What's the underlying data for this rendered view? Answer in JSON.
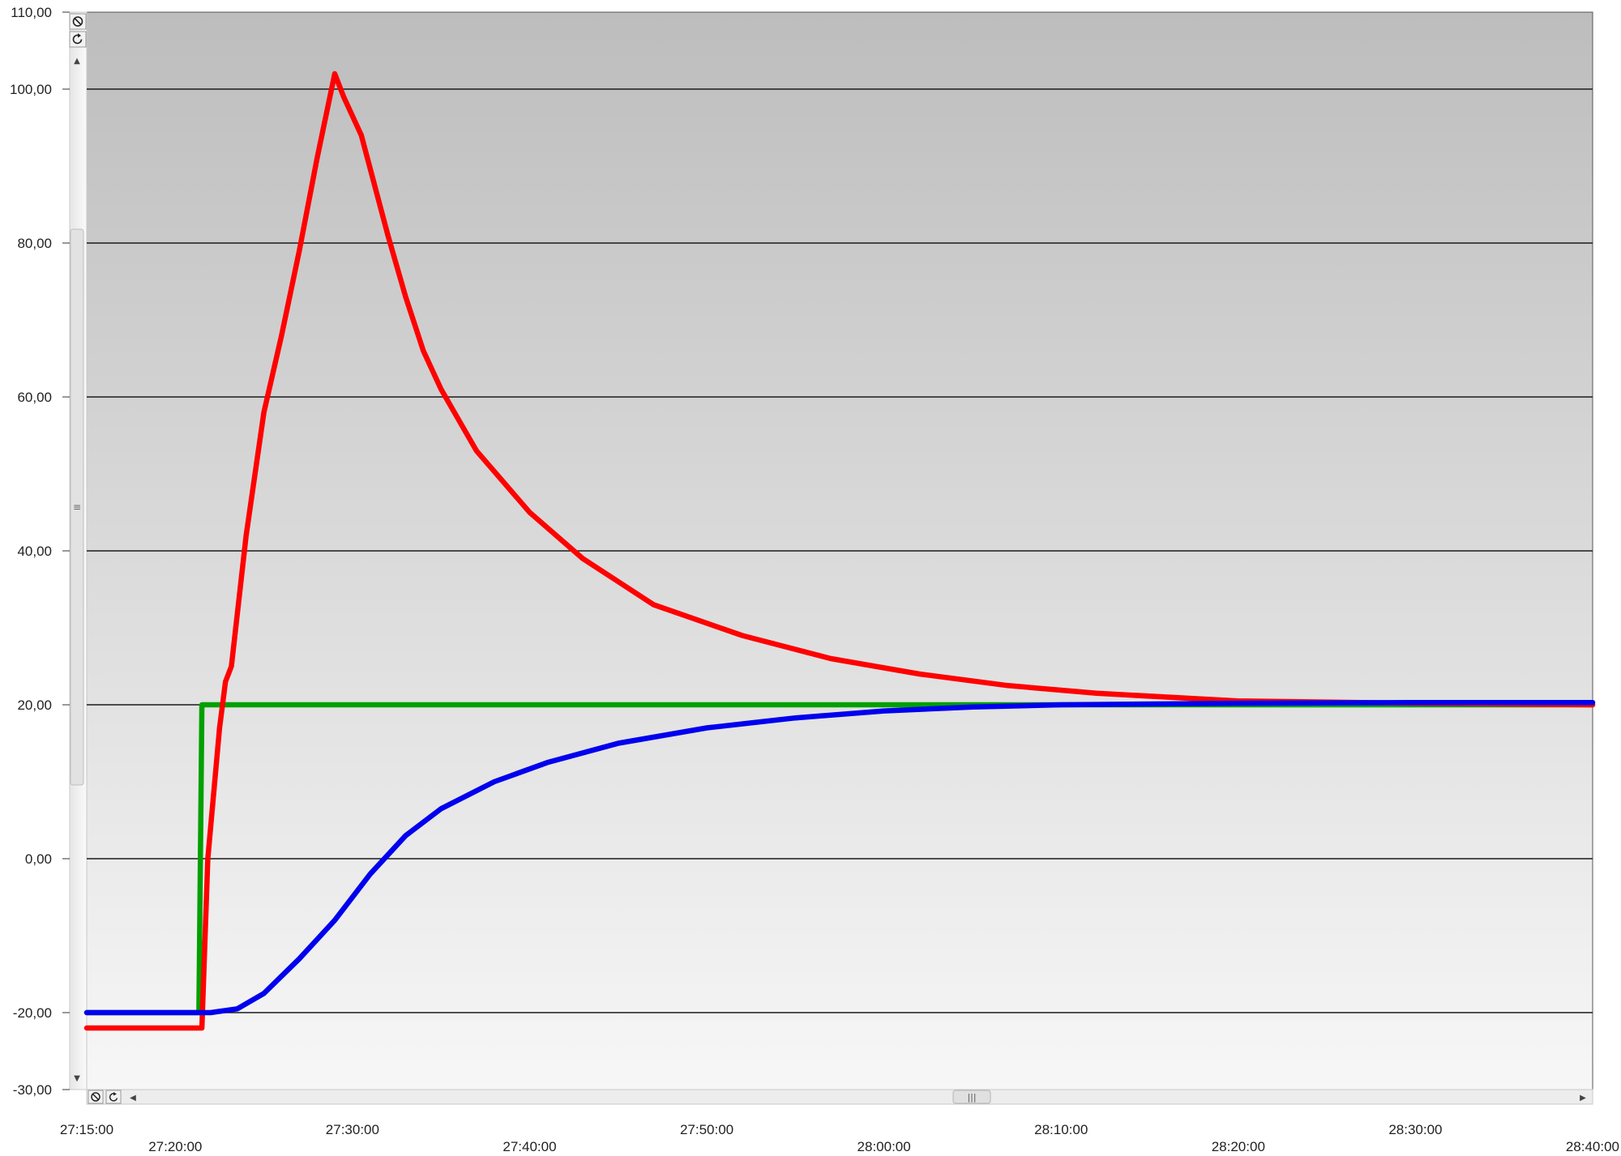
{
  "window": {
    "vertical_scroll": {
      "up_arrow": "▲",
      "down_arrow": "▼",
      "thumb_grip": "≡"
    },
    "horizontal_scroll": {
      "left_arrow": "◀",
      "right_arrow": "▶",
      "thumb_grip": "|||"
    },
    "controls": {
      "reset_icon": "reset-zoom-icon",
      "refresh_icon": "refresh-icon"
    }
  },
  "chart_data": {
    "type": "line",
    "title": "",
    "xlabel": "",
    "ylabel": "",
    "grid": true,
    "ylim": [
      -30,
      110
    ],
    "xlim": [
      "27:15:00",
      "28:40:00"
    ],
    "y_ticks": [
      {
        "value": 110,
        "label": "110,00"
      },
      {
        "value": 100,
        "label": "100,00"
      },
      {
        "value": 80,
        "label": "80,00"
      },
      {
        "value": 60,
        "label": "60,00"
      },
      {
        "value": 40,
        "label": "40,00"
      },
      {
        "value": 20,
        "label": "20,00"
      },
      {
        "value": 0,
        "label": "0,00"
      },
      {
        "value": -20,
        "label": "-20,00"
      },
      {
        "value": -30,
        "label": "-30,00"
      }
    ],
    "x_ticks": [
      {
        "time": "27:15:00",
        "label": "27:15:00"
      },
      {
        "time": "27:20:00",
        "label": "27:20:00"
      },
      {
        "time": "27:30:00",
        "label": "27:30:00"
      },
      {
        "time": "27:40:00",
        "label": "27:40:00"
      },
      {
        "time": "27:50:00",
        "label": "27:50:00"
      },
      {
        "time": "28:00:00",
        "label": "28:00:00"
      },
      {
        "time": "28:10:00",
        "label": "28:10:00"
      },
      {
        "time": "28:20:00",
        "label": "28:20:00"
      },
      {
        "time": "28:30:00",
        "label": "28:30:00"
      },
      {
        "time": "28:40:00",
        "label": "28:40:00"
      }
    ],
    "series": [
      {
        "color": "#00a000",
        "points": [
          [
            "27:15:00",
            -20
          ],
          [
            "27:21:20",
            -20
          ],
          [
            "27:21:30",
            20
          ],
          [
            "28:40:00",
            20
          ]
        ]
      },
      {
        "color": "#ff0000",
        "points": [
          [
            "27:15:00",
            -22
          ],
          [
            "27:21:30",
            -22
          ],
          [
            "27:21:50",
            0
          ],
          [
            "27:22:30",
            17
          ],
          [
            "27:22:50",
            23
          ],
          [
            "27:23:10",
            25
          ],
          [
            "27:24:00",
            42
          ],
          [
            "27:25:00",
            58
          ],
          [
            "27:26:00",
            68
          ],
          [
            "27:27:00",
            79
          ],
          [
            "27:28:00",
            91
          ],
          [
            "27:29:00",
            102
          ],
          [
            "27:29:30",
            99
          ],
          [
            "27:30:30",
            94
          ],
          [
            "27:32:00",
            81
          ],
          [
            "27:33:00",
            73
          ],
          [
            "27:34:00",
            66
          ],
          [
            "27:35:00",
            61
          ],
          [
            "27:37:00",
            53
          ],
          [
            "27:40:00",
            45
          ],
          [
            "27:43:00",
            39
          ],
          [
            "27:47:00",
            33
          ],
          [
            "27:52:00",
            29
          ],
          [
            "27:57:00",
            26
          ],
          [
            "28:02:00",
            24
          ],
          [
            "28:07:00",
            22.5
          ],
          [
            "28:12:00",
            21.5
          ],
          [
            "28:20:00",
            20.5
          ],
          [
            "28:30:00",
            20.2
          ],
          [
            "28:40:00",
            20
          ]
        ]
      },
      {
        "color": "#0000ee",
        "points": [
          [
            "27:15:00",
            -20
          ],
          [
            "27:22:00",
            -20
          ],
          [
            "27:23:30",
            -19.5
          ],
          [
            "27:25:00",
            -17.5
          ],
          [
            "27:27:00",
            -13
          ],
          [
            "27:29:00",
            -8
          ],
          [
            "27:31:00",
            -2
          ],
          [
            "27:33:00",
            3
          ],
          [
            "27:35:00",
            6.5
          ],
          [
            "27:38:00",
            10
          ],
          [
            "27:41:00",
            12.5
          ],
          [
            "27:45:00",
            15
          ],
          [
            "27:50:00",
            17
          ],
          [
            "27:55:00",
            18.3
          ],
          [
            "28:00:00",
            19.2
          ],
          [
            "28:05:00",
            19.7
          ],
          [
            "28:10:00",
            20
          ],
          [
            "28:20:00",
            20.2
          ],
          [
            "28:30:00",
            20.3
          ],
          [
            "28:40:00",
            20.3
          ]
        ]
      }
    ]
  }
}
